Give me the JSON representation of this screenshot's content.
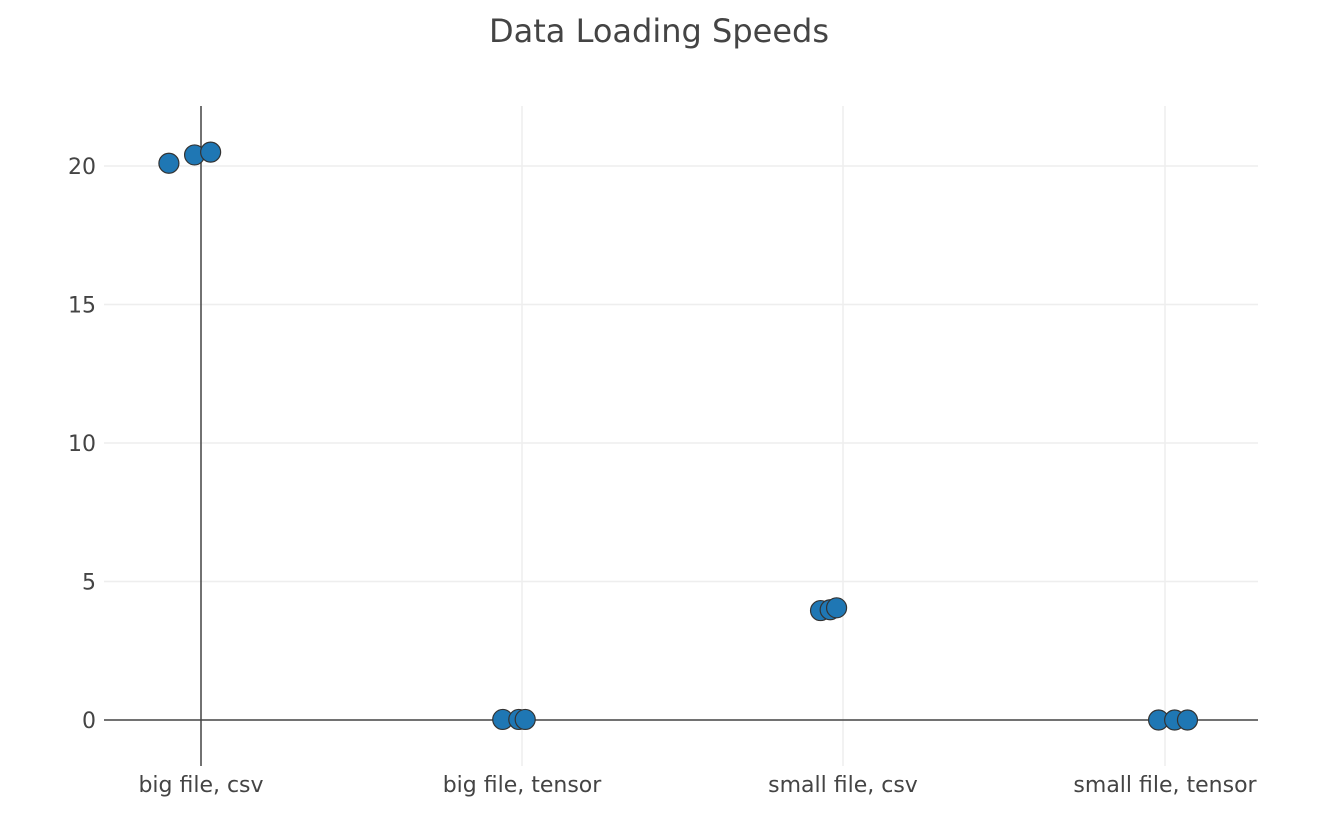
{
  "chart_data": {
    "type": "scatter",
    "title": "Data Loading Speeds",
    "xlabel": "",
    "ylabel": "",
    "categories": [
      "big file, csv",
      "big file, tensor",
      "small file, csv",
      "small file, tensor"
    ],
    "x_ticks": [
      "big file, csv",
      "big file, tensor",
      "small file, csv",
      "small file, tensor"
    ],
    "y_ticks": [
      0,
      5,
      10,
      15,
      20
    ],
    "ylim": [
      -1.5,
      22.2
    ],
    "grid": true,
    "legend": "none",
    "marker_color": "#1f77b4",
    "marker_outline": "#333333",
    "series": [
      {
        "points": [
          {
            "category": "big file, csv",
            "offset": -0.1,
            "y": 20.1
          },
          {
            "category": "big file, csv",
            "offset": -0.02,
            "y": 20.4
          },
          {
            "category": "big file, csv",
            "offset": 0.03,
            "y": 20.5
          },
          {
            "category": "big file, tensor",
            "offset": -0.06,
            "y": 0.02
          },
          {
            "category": "big file, tensor",
            "offset": -0.01,
            "y": 0.02
          },
          {
            "category": "big file, tensor",
            "offset": 0.01,
            "y": 0.02
          },
          {
            "category": "small file, csv",
            "offset": -0.07,
            "y": 3.95
          },
          {
            "category": "small file, csv",
            "offset": -0.04,
            "y": 3.98
          },
          {
            "category": "small file, csv",
            "offset": -0.02,
            "y": 4.05
          },
          {
            "category": "small file, tensor",
            "offset": -0.02,
            "y": 0.0
          },
          {
            "category": "small file, tensor",
            "offset": 0.03,
            "y": 0.0
          },
          {
            "category": "small file, tensor",
            "offset": 0.07,
            "y": 0.0
          }
        ]
      }
    ]
  }
}
